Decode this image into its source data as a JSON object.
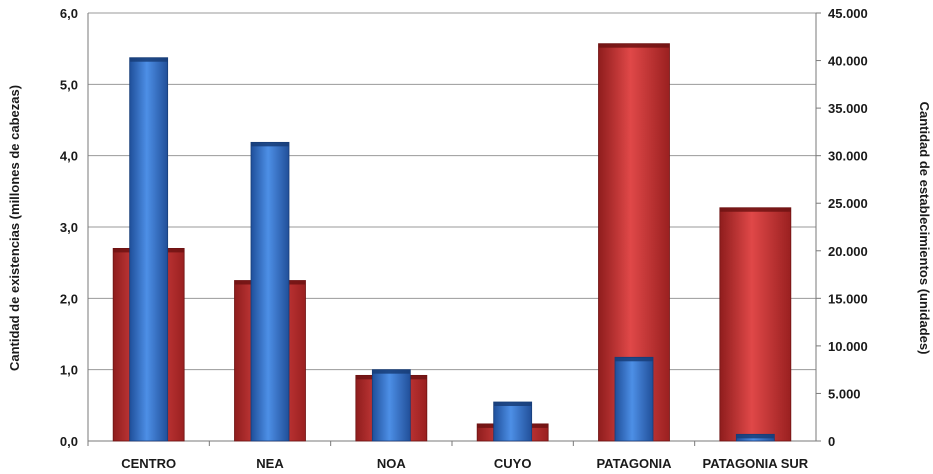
{
  "chart_data": {
    "type": "bar",
    "title": "",
    "categories": [
      "CENTRO",
      "NEA",
      "NOA",
      "CUYO",
      "PATAGONIA",
      "PATAGONIA SUR"
    ],
    "left_axis": {
      "label": "Cantidad de existencias (millones de cabezas)",
      "ylim": [
        0,
        6
      ],
      "ticks": [
        "0,0",
        "1,0",
        "2,0",
        "3,0",
        "4,0",
        "5,0",
        "6,0"
      ]
    },
    "right_axis": {
      "label": "Cantidad de establecimientos (unidades)",
      "ylim": [
        0,
        45000
      ],
      "ticks": [
        "0",
        "5.000",
        "10.000",
        "15.000",
        "20.000",
        "25.000",
        "30.000",
        "35.000",
        "40.000",
        "45.000"
      ]
    },
    "series": [
      {
        "axis": "left",
        "color": "#d13b3b",
        "values": [
          2.7,
          2.25,
          0.92,
          0.24,
          5.57,
          3.27
        ]
      },
      {
        "axis": "right",
        "color": "#3a7bd5",
        "values": [
          40300,
          31400,
          7500,
          4100,
          8800,
          700
        ]
      }
    ],
    "grid": true,
    "legend": "none"
  }
}
